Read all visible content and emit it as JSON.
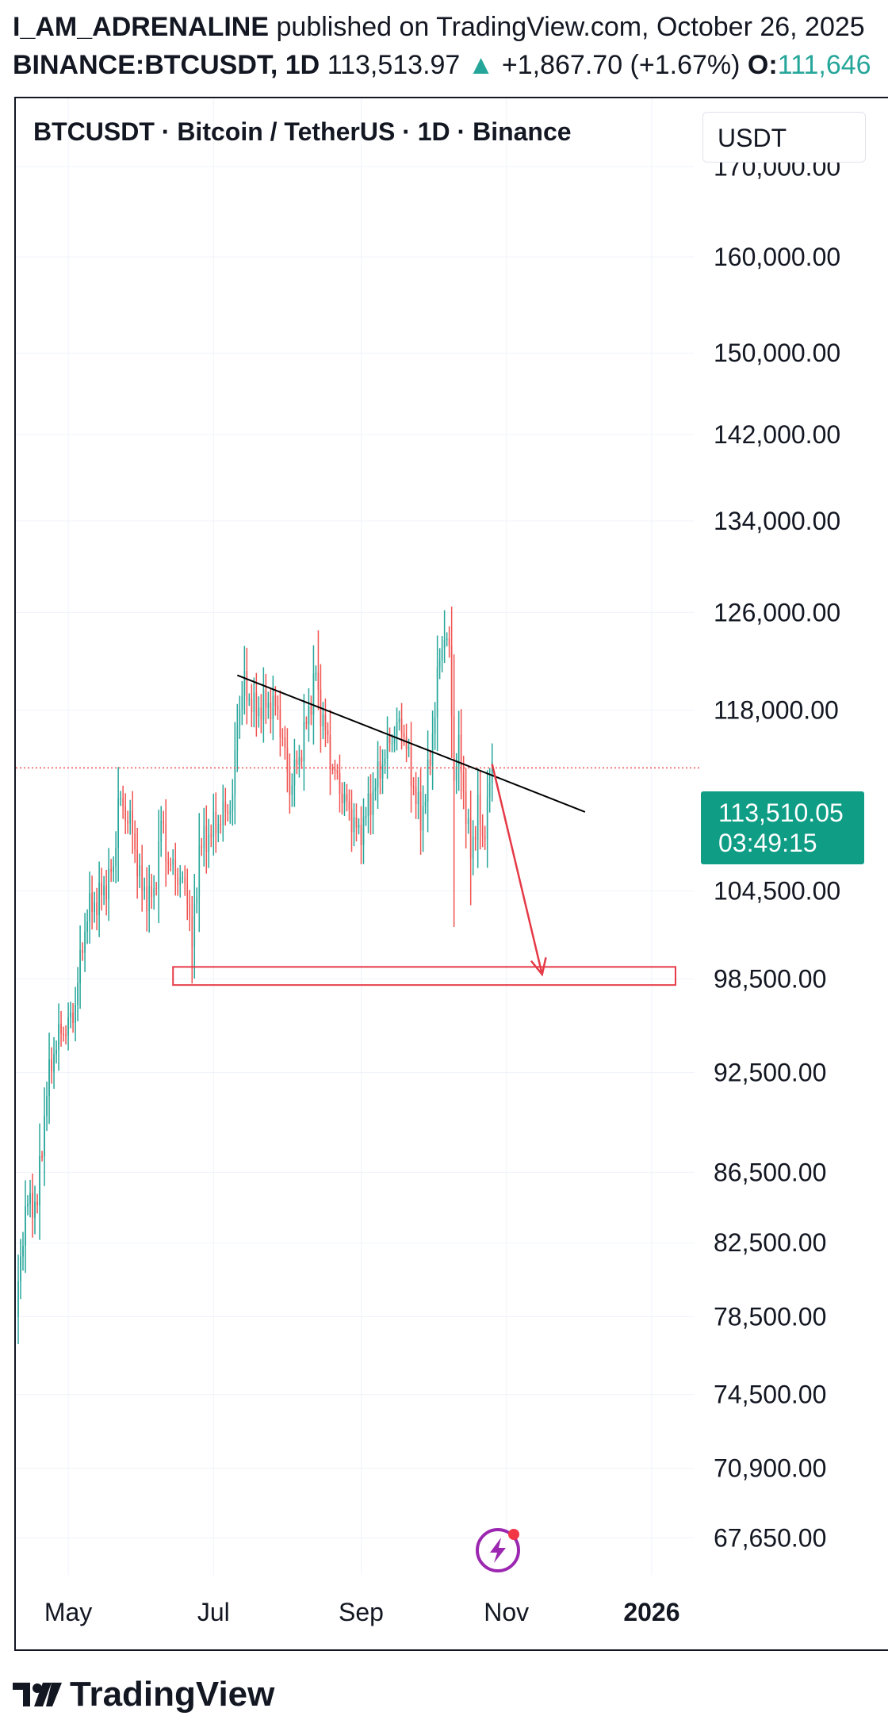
{
  "header": {
    "author": "I_AM_ADRENALINE",
    "published": "published on TradingView.com, October 26, 2025",
    "symbol_line": "BINANCE:BTCUSDT, 1D",
    "last_price": "113,513.97",
    "change": "+1,867.70 (+1.67%)",
    "open_label": "O:",
    "open_value": "111,646"
  },
  "legend": "BTCUSDT · Bitcoin / TetherUS · 1D · Binance",
  "currency": "USDT",
  "price_tag": {
    "price": "113,510.05",
    "countdown": "03:49:15"
  },
  "brand": "TradingView",
  "icons": {
    "change_up": "triangle-up-icon",
    "brand": "tradingview-logo-icon",
    "chart_tool": "lightning-badge-icon"
  },
  "colors": {
    "up": "#26a69a",
    "down": "#ef5350",
    "annotation": "#e53946",
    "trendline": "#000000",
    "accent": "#0f9d86"
  },
  "chart_data": {
    "type": "candlestick",
    "y_scale": "log",
    "ylim": [
      66000,
      178000
    ],
    "y_ticks": [
      {
        "value": 170000,
        "label": "170,000.00"
      },
      {
        "value": 160000,
        "label": "160,000.00"
      },
      {
        "value": 150000,
        "label": "150,000.00"
      },
      {
        "value": 142000,
        "label": "142,000.00"
      },
      {
        "value": 134000,
        "label": "134,000.00"
      },
      {
        "value": 126000,
        "label": "126,000.00"
      },
      {
        "value": 118000,
        "label": "118,000.00"
      },
      {
        "value": 104500,
        "label": "104,500.00"
      },
      {
        "value": 98500,
        "label": "98,500.00"
      },
      {
        "value": 92500,
        "label": "92,500.00"
      },
      {
        "value": 86500,
        "label": "86,500.00"
      },
      {
        "value": 82500,
        "label": "82,500.00"
      },
      {
        "value": 78500,
        "label": "78,500.00"
      },
      {
        "value": 74500,
        "label": "74,500.00"
      },
      {
        "value": 70900,
        "label": "70,900.00"
      },
      {
        "value": 67650,
        "label": "67,650.00"
      }
    ],
    "x_ticks": [
      {
        "date": "2025-05-01",
        "label": "May",
        "bold": false
      },
      {
        "date": "2025-07-01",
        "label": "Jul",
        "bold": false
      },
      {
        "date": "2025-09-01",
        "label": "Sep",
        "bold": false
      },
      {
        "date": "2025-11-01",
        "label": "Nov",
        "bold": false
      },
      {
        "date": "2026-01-01",
        "label": "2026",
        "bold": true
      }
    ],
    "xlim": [
      "2025-04-09",
      "2026-01-19"
    ],
    "current_price": 113510.05,
    "anchors": [
      [
        "2025-04-09",
        78500
      ],
      [
        "2025-04-13",
        84500
      ],
      [
        "2025-04-18",
        84800
      ],
      [
        "2025-04-22",
        91500
      ],
      [
        "2025-04-26",
        94500
      ],
      [
        "2025-05-03",
        96000
      ],
      [
        "2025-05-09",
        103000
      ],
      [
        "2025-05-14",
        104000
      ],
      [
        "2025-05-20",
        106000
      ],
      [
        "2025-05-22",
        111000
      ],
      [
        "2025-05-27",
        109500
      ],
      [
        "2025-06-01",
        104500
      ],
      [
        "2025-06-06",
        104000
      ],
      [
        "2025-06-09",
        109500
      ],
      [
        "2025-06-12",
        106500
      ],
      [
        "2025-06-16",
        105500
      ],
      [
        "2025-06-20",
        104500
      ],
      [
        "2025-06-22",
        100500
      ],
      [
        "2025-06-25",
        107500
      ],
      [
        "2025-07-03",
        109500
      ],
      [
        "2025-07-09",
        111000
      ],
      [
        "2025-07-11",
        117500
      ],
      [
        "2025-07-14",
        120000
      ],
      [
        "2025-07-18",
        118000
      ],
      [
        "2025-07-24",
        118500
      ],
      [
        "2025-07-28",
        118000
      ],
      [
        "2025-08-02",
        112000
      ],
      [
        "2025-08-07",
        115000
      ],
      [
        "2025-08-13",
        121000
      ],
      [
        "2025-08-14",
        119000
      ],
      [
        "2025-08-20",
        113500
      ],
      [
        "2025-08-24",
        111500
      ],
      [
        "2025-08-31",
        108500
      ],
      [
        "2025-09-04",
        110500
      ],
      [
        "2025-09-10",
        114000
      ],
      [
        "2025-09-14",
        116000
      ],
      [
        "2025-09-18",
        117000
      ],
      [
        "2025-09-22",
        113000
      ],
      [
        "2025-09-26",
        109500
      ],
      [
        "2025-09-30",
        114000
      ],
      [
        "2025-10-03",
        120500
      ],
      [
        "2025-10-06",
        124500
      ],
      [
        "2025-10-08",
        122500
      ],
      [
        "2025-10-10",
        113000
      ],
      [
        "2025-10-12",
        115000
      ],
      [
        "2025-10-17",
        107000
      ],
      [
        "2025-10-20",
        110500
      ],
      [
        "2025-10-22",
        108000
      ],
      [
        "2025-10-26",
        113510
      ]
    ],
    "highlights": [
      {
        "date": "2025-10-10",
        "high": 122500,
        "low": 102000
      },
      {
        "date": "2025-10-17",
        "high": 111000,
        "low": 103500
      },
      {
        "date": "2025-06-22",
        "high": 102000,
        "low": 98200
      },
      {
        "date": "2025-08-14",
        "high": 124500,
        "low": 118000
      },
      {
        "date": "2025-10-06",
        "high": 126200,
        "low": 121800
      },
      {
        "date": "2025-07-14",
        "high": 123200,
        "low": 117800
      }
    ],
    "trendline": [
      [
        "2025-07-11",
        120800
      ],
      [
        "2025-12-04",
        110200
      ]
    ],
    "projection_arrow": [
      [
        "2025-10-26",
        113800
      ],
      [
        "2025-11-16",
        98800
      ]
    ],
    "target_zone": {
      "x0": "2025-06-14",
      "x1": "2026-01-11",
      "y0": 98100,
      "y1": 99300
    }
  }
}
